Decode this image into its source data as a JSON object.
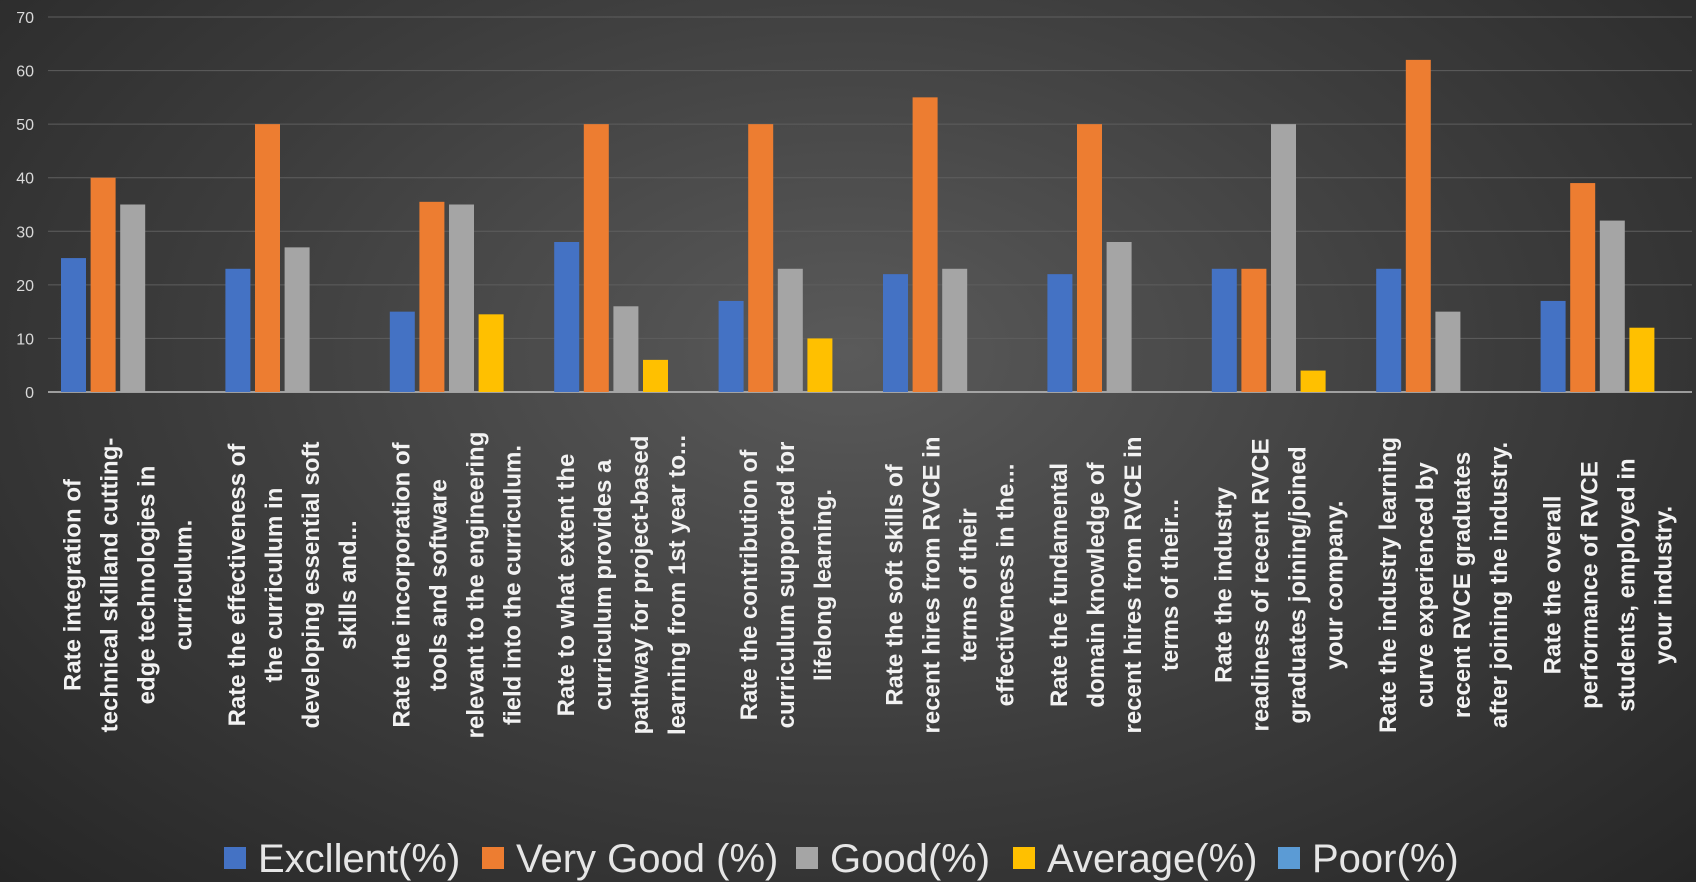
{
  "chart_data": {
    "type": "bar",
    "categories": [
      [
        "Rate integration of",
        "technical skilland cutting-",
        "edge technologies in",
        "curriculum."
      ],
      [
        "Rate the effectiveness of",
        "the curriculum in",
        "developing essential soft",
        "skills and..."
      ],
      [
        "Rate the incorporation of",
        "tools and software",
        "relevant to the engineering",
        "field into the curriculum."
      ],
      [
        "Rate to what extent the",
        "curriculum provides a",
        "pathway for project-based",
        "learning from 1st year to..."
      ],
      [
        "Rate the contribution of",
        "curriculum supported for",
        "lifelong learning."
      ],
      [
        "Rate the soft skills of",
        "recent hires from RVCE in",
        "terms of their",
        "effectiveness in the..."
      ],
      [
        "Rate the fundamental",
        "domain knowledge of",
        "recent hires from RVCE in",
        "terms of their..."
      ],
      [
        "Rate the industry",
        "readiness of recent RVCE",
        "graduates joining/joined",
        "your company."
      ],
      [
        "Rate the industry learning",
        "curve experienced by",
        "recent RVCE graduates",
        "after joining the industry."
      ],
      [
        "Rate the overall",
        "performance of RVCE",
        "students, employed in",
        "your industry."
      ]
    ],
    "series": [
      {
        "name": "Excllent(%)",
        "color": "#4472c4",
        "values": [
          25,
          23,
          15,
          28,
          17,
          22,
          22,
          23,
          23,
          17
        ]
      },
      {
        "name": "Very Good (%)",
        "color": "#ed7d31",
        "values": [
          40,
          50,
          35.5,
          50,
          50,
          55,
          50,
          23,
          62,
          39
        ]
      },
      {
        "name": "Good(%)",
        "color": "#a5a5a5",
        "values": [
          35,
          27,
          35,
          16,
          23,
          23,
          28,
          50,
          15,
          32
        ]
      },
      {
        "name": "Average(%)",
        "color": "#ffc000",
        "values": [
          0,
          0,
          14.5,
          6,
          10,
          0,
          0,
          4,
          0,
          12
        ]
      },
      {
        "name": "Poor(%)",
        "color": "#5b9bd5",
        "values": [
          0,
          0,
          0,
          0,
          0,
          0,
          0,
          0,
          0,
          0
        ]
      }
    ],
    "ylim": [
      0,
      70
    ],
    "yticks": [
      0,
      10,
      20,
      30,
      40,
      50,
      60,
      70
    ],
    "grid": true,
    "legend_position": "bottom"
  }
}
